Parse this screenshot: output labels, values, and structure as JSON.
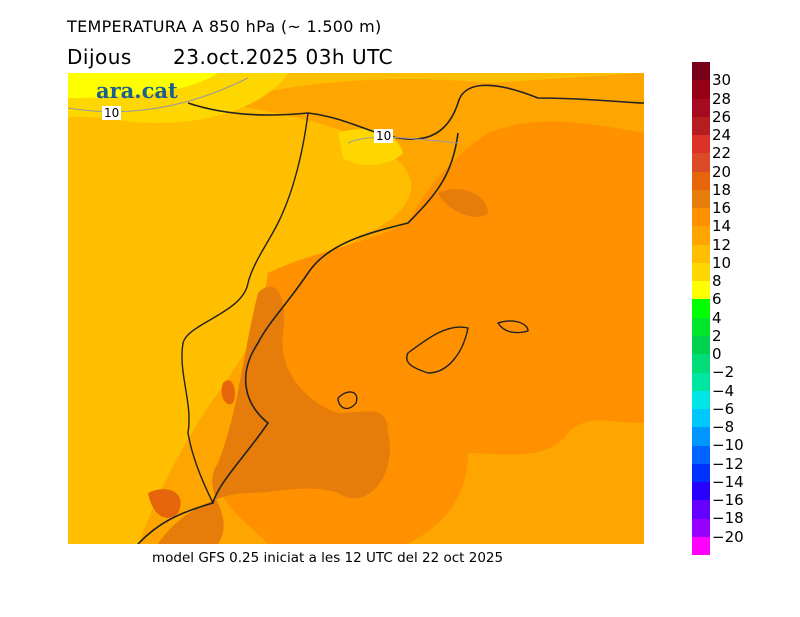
{
  "title": "TEMPERATURA A 850 hPa (~ 1.500 m)",
  "subtitle": "Dijous      23.oct.2025 03h UTC",
  "footer": "model GFS 0.25 iniciat a les 12 UTC del 22 oct 2025",
  "logo": "ara.cat",
  "contour_labels": [
    "10",
    "10"
  ],
  "colorbar": {
    "labels": [
      "30",
      "28",
      "26",
      "24",
      "22",
      "20",
      "18",
      "16",
      "14",
      "12",
      "10",
      "8",
      "6",
      "4",
      "2",
      "0",
      "−2",
      "−4",
      "−6",
      "−8",
      "−10",
      "−12",
      "−14",
      "−16",
      "−18",
      "−20"
    ],
    "colors": [
      "#780018",
      "#960014",
      "#a50a1e",
      "#b41e1e",
      "#dc3228",
      "#dc4b28",
      "#e6640a",
      "#e67d0a",
      "#ff9100",
      "#ffa500",
      "#ffbe00",
      "#ffd700",
      "#ffff00",
      "#00ff00",
      "#00e628",
      "#00d250",
      "#00dc78",
      "#00e6a0",
      "#00e6e6",
      "#00c8ff",
      "#0096ff",
      "#0064ff",
      "#0032ff",
      "#2800ff",
      "#6400ff",
      "#9600ff",
      "#ff00ff"
    ]
  }
}
